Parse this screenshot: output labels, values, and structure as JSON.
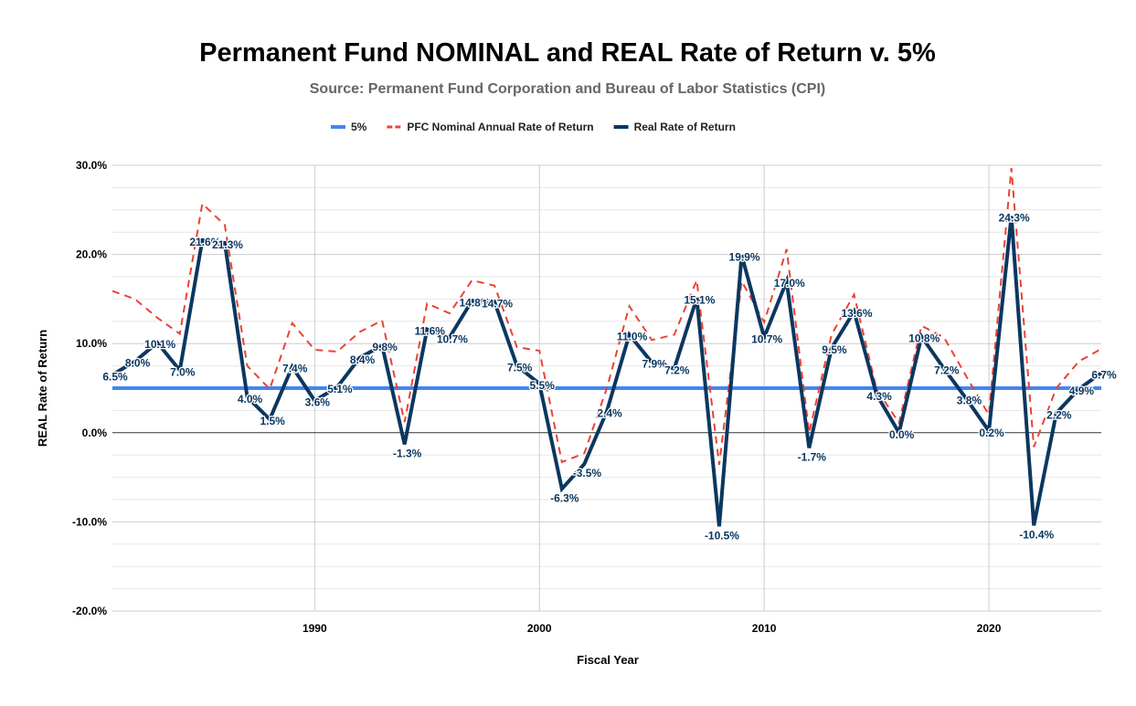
{
  "chart_data": {
    "type": "line",
    "title": "Permanent Fund NOMINAL and REAL Rate of Return v. 5%",
    "subtitle": "Source: Permanent Fund Corporation and Bureau of Labor Statistics (CPI)",
    "xlabel": "Fiscal Year",
    "ylabel": "REAL Rate of Return",
    "xlim": [
      1981,
      2025
    ],
    "ylim": [
      -20,
      30
    ],
    "x_ticks": [
      1990,
      2000,
      2010,
      2020
    ],
    "y_ticks": [
      "-20.0%",
      "-10.0%",
      "0.0%",
      "10.0%",
      "20.0%",
      "30.0%"
    ],
    "grid": true,
    "legend_position": "top",
    "x": [
      1981,
      1982,
      1983,
      1984,
      1985,
      1986,
      1987,
      1988,
      1989,
      1990,
      1991,
      1992,
      1993,
      1994,
      1995,
      1996,
      1997,
      1998,
      1999,
      2000,
      2001,
      2002,
      2003,
      2004,
      2005,
      2006,
      2007,
      2008,
      2009,
      2010,
      2011,
      2012,
      2013,
      2014,
      2015,
      2016,
      2017,
      2018,
      2019,
      2020,
      2021,
      2022,
      2023,
      2024,
      2025
    ],
    "series": [
      {
        "name": "5%",
        "color": "#4285f4",
        "style": "solid",
        "values": [
          5,
          5,
          5,
          5,
          5,
          5,
          5,
          5,
          5,
          5,
          5,
          5,
          5,
          5,
          5,
          5,
          5,
          5,
          5,
          5,
          5,
          5,
          5,
          5,
          5,
          5,
          5,
          5,
          5,
          5,
          5,
          5,
          5,
          5,
          5,
          5,
          5,
          5,
          5,
          5,
          5,
          5,
          5,
          5,
          5
        ]
      },
      {
        "name": "PFC Nominal Annual Rate of Return",
        "color": "#ea4335",
        "style": "dashed",
        "values": [
          15.9,
          15.0,
          12.9,
          11.1,
          25.7,
          23.3,
          7.5,
          4.9,
          12.3,
          9.3,
          9.1,
          11.3,
          12.6,
          1.2,
          14.5,
          13.4,
          17.1,
          16.5,
          9.6,
          9.2,
          -3.3,
          -2.3,
          5.0,
          14.2,
          10.4,
          11.0,
          17.1,
          -3.6,
          17.0,
          12.4,
          20.6,
          0.0,
          11.0,
          15.5,
          4.9,
          1.1,
          12.0,
          10.7,
          6.3,
          2.0,
          29.7,
          -1.6,
          5.0,
          8.0,
          9.4
        ]
      },
      {
        "name": "Real Rate of Return",
        "color": "#0b3760",
        "style": "solid",
        "values": [
          6.5,
          8.0,
          10.1,
          7.0,
          21.6,
          21.3,
          4.0,
          1.5,
          7.4,
          3.6,
          5.1,
          8.4,
          9.8,
          -1.3,
          11.6,
          10.7,
          14.8,
          14.7,
          7.5,
          5.5,
          -6.3,
          -3.5,
          2.4,
          11.0,
          7.9,
          7.2,
          15.1,
          -10.5,
          19.9,
          10.7,
          17.0,
          -1.7,
          9.5,
          13.6,
          4.3,
          0.0,
          10.8,
          7.2,
          3.8,
          0.2,
          24.3,
          -10.4,
          2.2,
          4.9,
          6.7
        ],
        "data_labels": [
          "6.5%",
          "8.0%",
          "10.1%",
          "7.0%",
          "21.6%",
          "21.3%",
          "4.0%",
          "1.5%",
          "7.4%",
          "3.6%",
          "5.1%",
          "8.4%",
          "9.8%",
          "-1.3%",
          "11.6%",
          "10.7%",
          "14.8%",
          "14.7%",
          "7.5%",
          "5.5%",
          "-6.3%",
          "-3.5%",
          "2.4%",
          "11.0%",
          "7.9%",
          "7.2%",
          "15.1%",
          "-10.5%",
          "19.9%",
          "10.7%",
          "17.0%",
          "-1.7%",
          "9.5%",
          "13.6%",
          "4.3%",
          "0.0%",
          "10.8%",
          "7.2%",
          "3.8%",
          "0.2%",
          "24.3%",
          "-10.4%",
          "2.2%",
          "4.9%",
          "6.7%"
        ]
      }
    ]
  }
}
